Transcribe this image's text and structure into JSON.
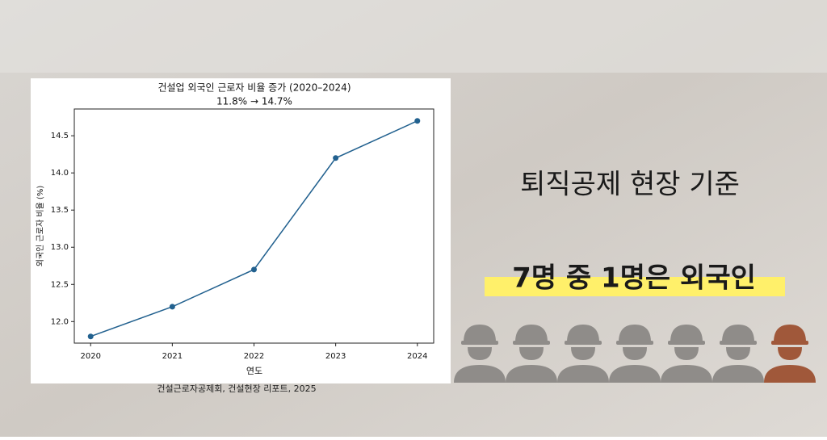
{
  "chart_data": {
    "type": "line",
    "title": "건설업 외국인 근로자 비율 증가 (2020–2024)",
    "subtitle": "11.8% → 14.7%",
    "x_label": "연도",
    "y_label": "외국인 근로자 비율 (%)",
    "x": [
      2020,
      2021,
      2022,
      2023,
      2024
    ],
    "values": [
      11.8,
      12.2,
      12.7,
      14.2,
      14.7
    ],
    "color": "#22618f",
    "xlim": [
      2019.8,
      2024.2
    ],
    "xticks": [
      2020,
      2021,
      2022,
      2023,
      2024
    ],
    "ylim": [
      11.71,
      14.86
    ],
    "yticks": [
      {
        "value": 12,
        "label": "12.0"
      },
      12.5,
      {
        "value": 13,
        "label": "13.0"
      },
      13.5,
      {
        "value": 14,
        "label": "14.0"
      },
      14.5
    ],
    "grid": false
  },
  "source": "건설근로자공제회, 건설현장 리포트, 2025",
  "headline": "퇴직공제 현장 기준",
  "highlight": "7명 중 1명은 외국인"
}
